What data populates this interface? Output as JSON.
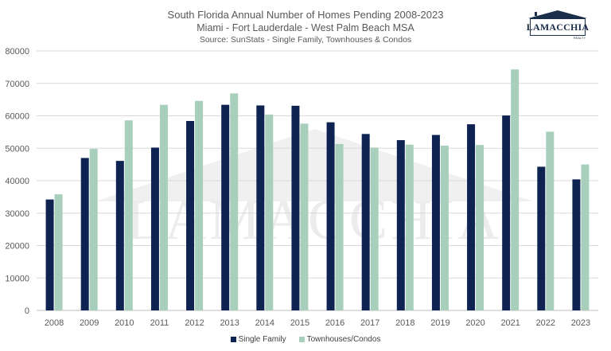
{
  "title": "South Florida Annual Number of Homes Pending 2008-2023",
  "subtitle": "Miami - Fort Lauderdale - West Palm Beach MSA",
  "source": "Source: SunStats - Single Family, Townhouses & Condos",
  "logo": {
    "text": "LAMACCHIA",
    "subtext": "REALTY",
    "icon": "house-roof-icon"
  },
  "watermark": "LAMACCHIA REALTY",
  "colors": {
    "single_family": "#0f2352",
    "townhouses_condos": "#a8cfbb",
    "gridline": "#d9d9d9",
    "axis_text": "#595959",
    "logo_navy": "#1a2e4a"
  },
  "chart_data": {
    "type": "bar",
    "categories": [
      "2008",
      "2009",
      "2010",
      "2011",
      "2012",
      "2013",
      "2014",
      "2015",
      "2016",
      "2017",
      "2018",
      "2019",
      "2020",
      "2021",
      "2022",
      "2023"
    ],
    "series": [
      {
        "name": "Single Family",
        "values": [
          34200,
          47000,
          46100,
          50200,
          58400,
          63400,
          63200,
          63100,
          58000,
          54400,
          52500,
          54100,
          57400,
          60100,
          44300,
          40400
        ]
      },
      {
        "name": "Townhouses/Condos",
        "values": [
          35800,
          49800,
          58600,
          63400,
          64600,
          66900,
          60400,
          57600,
          51300,
          50200,
          51100,
          50800,
          51000,
          74300,
          55100,
          45000
        ]
      }
    ],
    "ylim": [
      0,
      80000
    ],
    "yticks": [
      0,
      10000,
      20000,
      30000,
      40000,
      50000,
      60000,
      70000,
      80000
    ],
    "grid": true,
    "legend": "bottom",
    "xlabel": "",
    "ylabel": ""
  }
}
